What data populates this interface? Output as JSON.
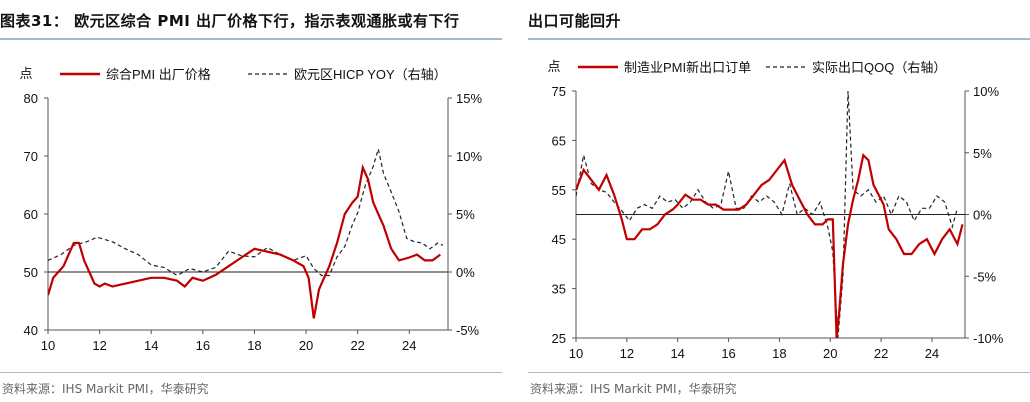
{
  "left": {
    "title": "图表31：  欧元区综合 PMI 出厂价格下行，指示表观通胀或有下行",
    "source": "资料来源：IHS Markit PMI，华泰研究"
  },
  "right": {
    "title_fragment": "出口可能回升",
    "source": "资料来源：IHS Markit PMI，华泰研究"
  },
  "chart_data": [
    {
      "type": "line",
      "left_unit": "点",
      "ylim": [
        40,
        80
      ],
      "yticks": [
        "40",
        "50",
        "60",
        "70",
        "80"
      ],
      "y2lim": [
        -5,
        15
      ],
      "y2ticks": [
        "-5%",
        "0%",
        "5%",
        "10%",
        "15%"
      ],
      "xlim": [
        2010,
        2025.5
      ],
      "xticks": [
        "10",
        "12",
        "14",
        "16",
        "18",
        "20",
        "22",
        "24"
      ],
      "legend_position": "top",
      "series": [
        {
          "name": "综合PMI 出厂价格",
          "axis": "left",
          "color": "#c00000",
          "x": [
            2010.0,
            2010.2,
            2010.4,
            2010.6,
            2010.8,
            2011.0,
            2011.2,
            2011.4,
            2011.6,
            2011.8,
            2012.0,
            2012.2,
            2012.5,
            2013.0,
            2013.5,
            2014.0,
            2014.5,
            2015.0,
            2015.3,
            2015.6,
            2016.0,
            2016.5,
            2017.0,
            2017.5,
            2018.0,
            2018.5,
            2019.0,
            2019.5,
            2019.9,
            2020.1,
            2020.3,
            2020.5,
            2020.7,
            2020.9,
            2021.2,
            2021.5,
            2021.8,
            2022.0,
            2022.2,
            2022.4,
            2022.6,
            2022.8,
            2023.0,
            2023.3,
            2023.6,
            2024.0,
            2024.3,
            2024.6,
            2024.9,
            2025.2
          ],
          "values": [
            46,
            49,
            50,
            51,
            53,
            55,
            55,
            52,
            50,
            48,
            47.5,
            48,
            47.5,
            48,
            48.5,
            49,
            49,
            48.5,
            47.5,
            49,
            48.5,
            49.5,
            51,
            52.5,
            54,
            53.5,
            53,
            52,
            51,
            49,
            42,
            47,
            49,
            51,
            55,
            60,
            62,
            63,
            68,
            66,
            62,
            60,
            58,
            54,
            52,
            52.5,
            53,
            52,
            52,
            53
          ]
        },
        {
          "name": "欧元区HICP YOY（右轴）",
          "axis": "right",
          "color": "#222222",
          "dashed": true,
          "x": [
            2010.0,
            2010.5,
            2011.0,
            2011.5,
            2011.9,
            2012.5,
            2013.0,
            2013.5,
            2014.0,
            2014.5,
            2015.0,
            2015.5,
            2016.0,
            2016.5,
            2017.0,
            2017.5,
            2018.0,
            2018.5,
            2019.0,
            2019.5,
            2020.0,
            2020.3,
            2020.6,
            2020.9,
            2021.2,
            2021.5,
            2021.8,
            2022.0,
            2022.3,
            2022.6,
            2022.8,
            2023.0,
            2023.3,
            2023.6,
            2023.9,
            2024.2,
            2024.5,
            2024.8,
            2025.1,
            2025.3
          ],
          "values": [
            1.0,
            1.5,
            2.3,
            2.6,
            3.0,
            2.6,
            2.0,
            1.5,
            0.6,
            0.4,
            -0.3,
            0.3,
            0.0,
            0.4,
            1.8,
            1.4,
            1.3,
            2.1,
            1.5,
            1.0,
            1.4,
            0.3,
            -0.3,
            -0.3,
            1.3,
            2.2,
            4.1,
            5.1,
            7.5,
            9.1,
            10.6,
            8.5,
            6.9,
            5.2,
            2.9,
            2.6,
            2.5,
            2.0,
            2.5,
            2.3
          ]
        }
      ]
    },
    {
      "type": "line",
      "left_unit": "点",
      "ylim": [
        25,
        75
      ],
      "yticks": [
        "25",
        "35",
        "45",
        "55",
        "65",
        "75"
      ],
      "y2lim": [
        -10,
        10
      ],
      "y2ticks": [
        "-10%",
        "-5%",
        "0%",
        "5%",
        "10%"
      ],
      "xlim": [
        2010,
        2025.3
      ],
      "xticks": [
        "10",
        "12",
        "14",
        "16",
        "18",
        "20",
        "22",
        "24"
      ],
      "legend_position": "top",
      "series": [
        {
          "name": "制造业PMI新出口订单",
          "axis": "left",
          "color": "#c00000",
          "x": [
            2010.0,
            2010.3,
            2010.6,
            2010.9,
            2011.2,
            2011.5,
            2011.8,
            2012.0,
            2012.3,
            2012.6,
            2012.9,
            2013.2,
            2013.5,
            2013.8,
            2014.0,
            2014.3,
            2014.6,
            2014.9,
            2015.2,
            2015.5,
            2015.8,
            2016.1,
            2016.4,
            2016.7,
            2017.0,
            2017.3,
            2017.6,
            2017.9,
            2018.2,
            2018.5,
            2018.8,
            2019.1,
            2019.4,
            2019.7,
            2019.9,
            2020.1,
            2020.25,
            2020.35,
            2020.5,
            2020.7,
            2020.9,
            2021.1,
            2021.3,
            2021.5,
            2021.7,
            2021.9,
            2022.1,
            2022.3,
            2022.6,
            2022.9,
            2023.2,
            2023.5,
            2023.8,
            2024.1,
            2024.4,
            2024.7,
            2025.0,
            2025.2
          ],
          "values": [
            55,
            59,
            57,
            55,
            58,
            54,
            49,
            45,
            45,
            47,
            47,
            48,
            50,
            51,
            52,
            54,
            53,
            53,
            52,
            52,
            51,
            51,
            51,
            52,
            54,
            56,
            57,
            59,
            61,
            56,
            53,
            50,
            48,
            48,
            49,
            49,
            25,
            30,
            40,
            48,
            53,
            57,
            62,
            61,
            56,
            54,
            52,
            47,
            45,
            42,
            42,
            44,
            45,
            42,
            45,
            47,
            44,
            48
          ]
        },
        {
          "name": "实际出口QOQ（右轴）",
          "axis": "right",
          "color": "#222222",
          "dashed": true,
          "x": [
            2010.0,
            2010.3,
            2010.6,
            2010.9,
            2011.2,
            2011.5,
            2011.8,
            2012.1,
            2012.4,
            2012.7,
            2013.0,
            2013.3,
            2013.6,
            2013.9,
            2014.2,
            2014.5,
            2014.8,
            2015.1,
            2015.4,
            2015.7,
            2016.0,
            2016.3,
            2016.6,
            2016.9,
            2017.2,
            2017.5,
            2017.8,
            2018.1,
            2018.4,
            2018.7,
            2019.0,
            2019.3,
            2019.6,
            2019.9,
            2020.1,
            2020.3,
            2020.5,
            2020.7,
            2020.9,
            2021.2,
            2021.5,
            2021.8,
            2022.1,
            2022.4,
            2022.7,
            2023.0,
            2023.3,
            2023.6,
            2023.9,
            2024.2,
            2024.5,
            2024.8,
            2025.0
          ],
          "values": [
            1.5,
            4.8,
            2.5,
            2.0,
            1.8,
            1.0,
            0.3,
            -0.5,
            0.5,
            0.8,
            0.5,
            1.5,
            1.0,
            1.2,
            0.5,
            1.0,
            2.0,
            1.0,
            0.5,
            0.8,
            3.5,
            0.5,
            0.5,
            1.5,
            1.0,
            1.5,
            1.0,
            0.0,
            2.5,
            0.0,
            0.5,
            0.0,
            1.0,
            -1.0,
            -3.0,
            -10.0,
            -5.0,
            10.0,
            2.0,
            1.5,
            2.0,
            1.0,
            1.5,
            0.0,
            1.5,
            1.0,
            -0.5,
            0.5,
            0.5,
            1.5,
            1.0,
            -1.0,
            0.5
          ]
        }
      ]
    }
  ]
}
